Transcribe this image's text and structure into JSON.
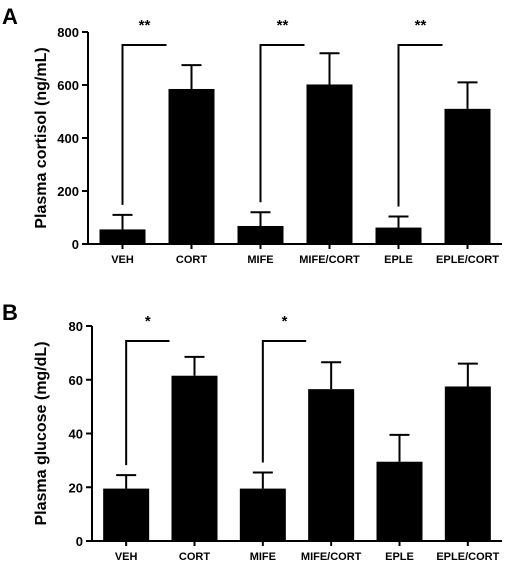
{
  "chart_data": [
    {
      "panel": "A",
      "type": "bar",
      "categories": [
        "VEH",
        "CORT",
        "MIFE",
        "MIFE/CORT",
        "EPLE",
        "EPLE/CORT"
      ],
      "values": [
        55,
        585,
        68,
        602,
        62,
        510
      ],
      "errors": [
        55,
        90,
        52,
        118,
        42,
        100
      ],
      "ylabel": "Plasma cortisol (ng/mL)",
      "ylim": [
        0,
        800
      ],
      "yticks": [
        "0",
        "200",
        "400",
        "600",
        "800"
      ],
      "significance": [
        {
          "from": "VEH",
          "to": "CORT",
          "label": "**"
        },
        {
          "from": "MIFE",
          "to": "MIFE/CORT",
          "label": "**"
        },
        {
          "from": "EPLE",
          "to": "EPLE/CORT",
          "label": "**"
        }
      ],
      "bar_color": "#000000",
      "grid": false
    },
    {
      "panel": "B",
      "type": "bar",
      "categories": [
        "VEH",
        "CORT",
        "MIFE",
        "MIFE/CORT",
        "EPLE",
        "EPLE/CORT"
      ],
      "values": [
        19.5,
        61.5,
        19.5,
        56.5,
        29.5,
        57.5
      ],
      "errors": [
        5,
        7,
        6,
        10,
        10,
        8.5
      ],
      "ylabel": "Plasma glucose (mg/dL)",
      "ylim": [
        0,
        80
      ],
      "yticks": [
        "0",
        "20",
        "40",
        "60",
        "80"
      ],
      "significance": [
        {
          "from": "VEH",
          "to": "CORT",
          "label": "*"
        },
        {
          "from": "MIFE",
          "to": "MIFE/CORT",
          "label": "*"
        }
      ],
      "bar_color": "#000000",
      "grid": false
    }
  ]
}
